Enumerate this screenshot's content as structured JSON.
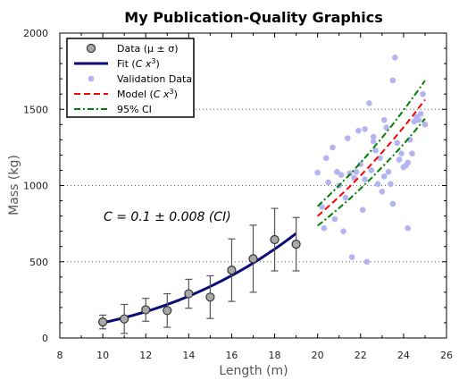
{
  "chart_data": {
    "type": "scatter",
    "title": "My Publication-Quality Graphics",
    "xlabel": "Length (m)",
    "ylabel": "Mass (kg)",
    "xlim": [
      8,
      26
    ],
    "ylim": [
      0,
      2000
    ],
    "x_ticks": [
      8,
      10,
      12,
      14,
      16,
      18,
      20,
      22,
      24,
      26
    ],
    "y_ticks": [
      0,
      500,
      1000,
      1500,
      2000
    ],
    "grid": "horizontal dotted",
    "legend_position": "top-left",
    "annotation": "C = 0.1 ± 0.008 (CI)",
    "colors": {
      "data_marker": "#a9a9a9",
      "fit": "#0a0a78",
      "validation": "#b4b4f0",
      "model": "#ff0000",
      "ci": "#008000",
      "errorbar": "#555555"
    },
    "legend": [
      {
        "label": "Data (μ ± σ)",
        "style": "marker"
      },
      {
        "label": "Fit (",
        "italic": "C x",
        "sup": "3",
        "tail": ")",
        "style": "line-fit"
      },
      {
        "label": "Validation Data",
        "style": "dot"
      },
      {
        "label": "Model (",
        "italic": "C x",
        "sup": "3",
        "tail": ")",
        "style": "dashed"
      },
      {
        "label": "95% CI",
        "style": "dashdot"
      }
    ],
    "series": [
      {
        "name": "Data (μ ± σ)",
        "x": [
          10,
          11,
          12,
          13,
          14,
          15,
          16,
          17,
          18,
          19
        ],
        "y": [
          105,
          125,
          185,
          180,
          290,
          268,
          445,
          520,
          645,
          615
        ],
        "err": [
          45,
          95,
          75,
          110,
          95,
          140,
          205,
          220,
          205,
          175
        ]
      },
      {
        "name": "Fit (C x3)",
        "x": [
          10,
          11,
          12,
          13,
          14,
          15,
          16,
          17,
          18,
          19
        ],
        "y": [
          100,
          133,
          173,
          220,
          274,
          338,
          410,
          491,
          583,
          686
        ]
      },
      {
        "name": "Validation Data",
        "x": [
          20.0,
          20.2,
          20.4,
          20.5,
          20.7,
          20.8,
          21.0,
          21.1,
          21.2,
          21.4,
          21.5,
          21.6,
          21.7,
          21.8,
          21.9,
          22.0,
          22.1,
          22.2,
          22.3,
          22.4,
          22.5,
          22.6,
          22.7,
          22.8,
          22.9,
          23.0,
          23.1,
          23.2,
          23.3,
          23.4,
          23.5,
          23.6,
          23.7,
          23.8,
          23.9,
          24.0,
          24.1,
          24.2,
          24.3,
          24.4,
          24.5,
          24.6,
          24.7,
          24.8,
          24.9,
          25.0,
          20.3,
          21.3,
          22.2,
          23.5,
          24.2,
          20.9,
          22.6,
          23.1
        ],
        "y": [
          1085,
          860,
          1180,
          1020,
          1250,
          780,
          1000,
          1070,
          700,
          1310,
          1080,
          530,
          1050,
          1090,
          1360,
          1140,
          840,
          1370,
          500,
          1540,
          1100,
          1290,
          1230,
          1010,
          1180,
          960,
          1430,
          1380,
          1090,
          1010,
          1690,
          1840,
          1280,
          1170,
          1210,
          1120,
          1130,
          720,
          1300,
          1210,
          1420,
          1450,
          1430,
          1470,
          1600,
          1400,
          720,
          920,
          1040,
          880,
          1150,
          1090,
          1320,
          1060
        ]
      },
      {
        "name": "Model (C x3)",
        "x": [
          20,
          20.5,
          21,
          21.5,
          22,
          22.5,
          23,
          23.5,
          24,
          24.5,
          25
        ],
        "y": [
          800,
          862,
          926,
          994,
          1065,
          1139,
          1217,
          1298,
          1382,
          1471,
          1563
        ]
      },
      {
        "name": "95% CI upper",
        "x": [
          20,
          20.5,
          21,
          21.5,
          22,
          22.5,
          23,
          23.5,
          24,
          24.5,
          25
        ],
        "y": [
          864,
          931,
          1000,
          1073,
          1150,
          1230,
          1314,
          1402,
          1493,
          1589,
          1688
        ]
      },
      {
        "name": "95% CI lower",
        "x": [
          20,
          20.5,
          21,
          21.5,
          22,
          22.5,
          23,
          23.5,
          24,
          24.5,
          25
        ],
        "y": [
          736,
          793,
          852,
          914,
          980,
          1048,
          1120,
          1194,
          1271,
          1353,
          1438
        ]
      }
    ]
  }
}
